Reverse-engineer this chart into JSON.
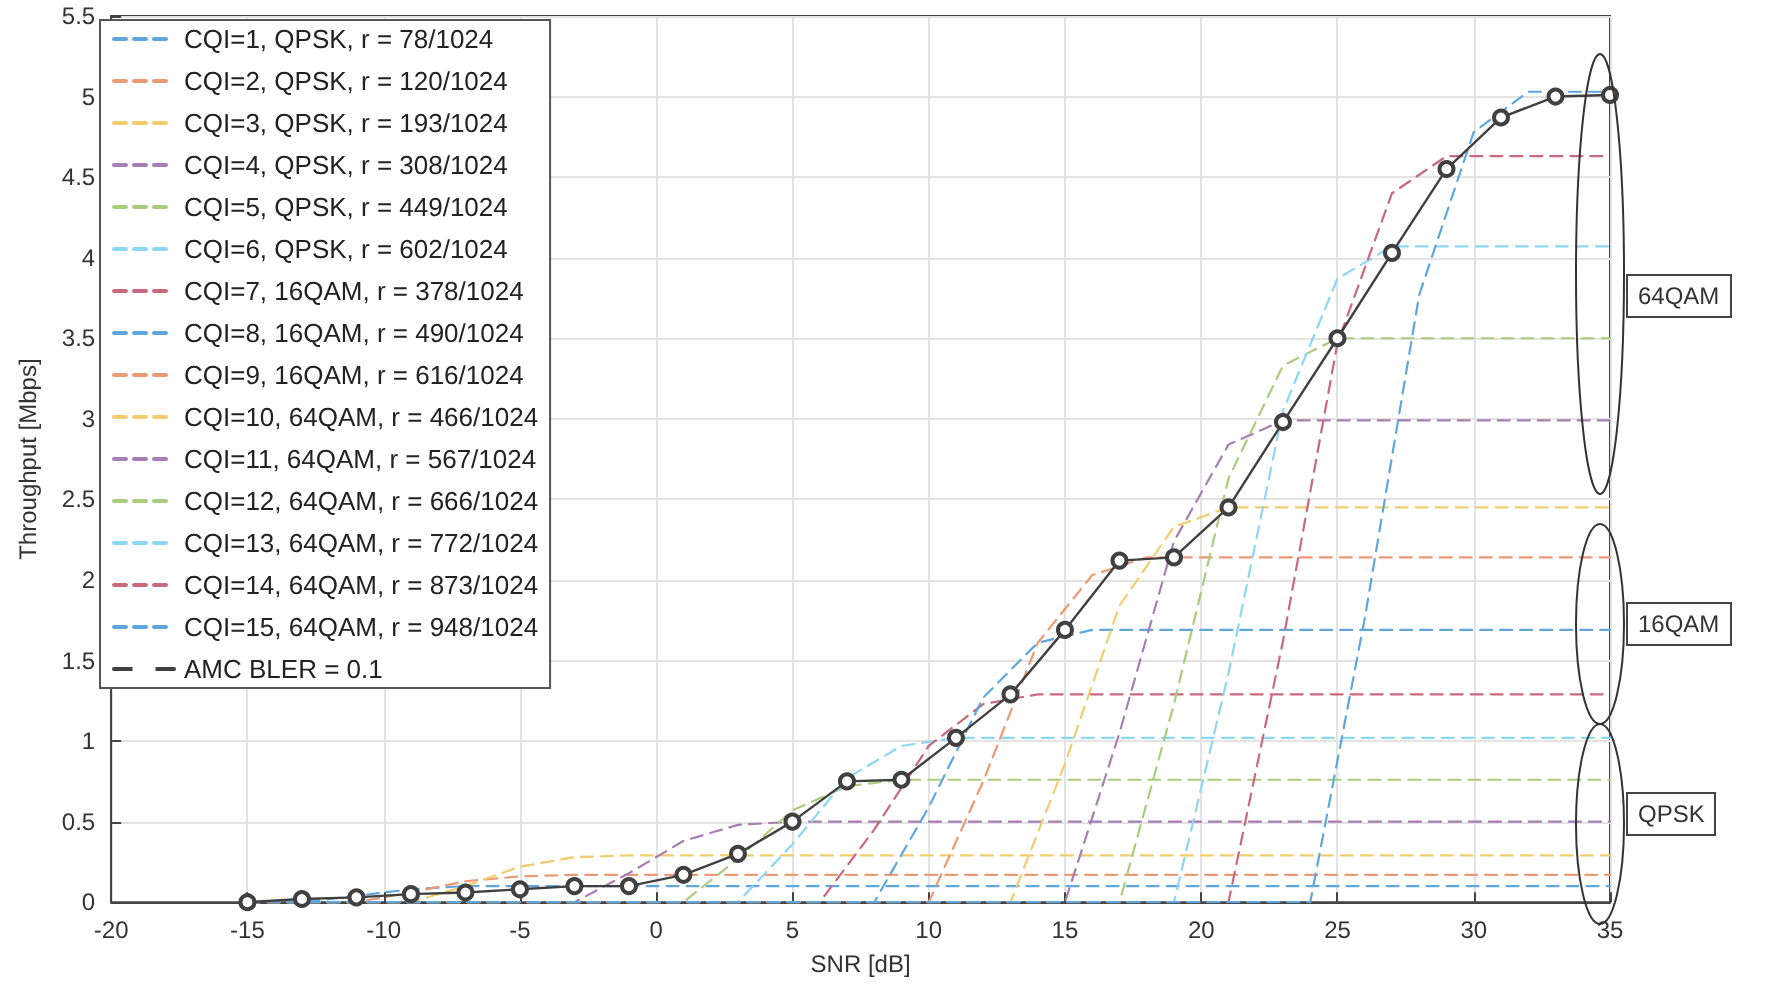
{
  "chart_data": {
    "type": "line",
    "xlabel": "SNR [dB]",
    "ylabel": "Throughput [Mbps]",
    "xlim": [
      -20,
      35
    ],
    "xticks": [
      -20,
      -15,
      -10,
      -5,
      0,
      5,
      10,
      15,
      20,
      25,
      30,
      35
    ],
    "ylim": [
      0,
      5.5
    ],
    "yticks": [
      0,
      0.5,
      1,
      1.5,
      2,
      2.5,
      3,
      3.5,
      4,
      4.5,
      5,
      5.5
    ],
    "grid": true,
    "legend": "top left",
    "line_style": "dashed",
    "marker": "none",
    "annotations": [
      "64QAM",
      "16QAM",
      "QPSK"
    ],
    "series": [
      {
        "name": "CQI=1, QPSK, r = 78/1024",
        "color": "#5fa6dc",
        "x": [
          -15,
          -13,
          -11,
          -9,
          -7,
          -5,
          35
        ],
        "values": [
          0,
          0,
          0.04,
          0.08,
          0.1,
          0.1,
          0.1
        ]
      },
      {
        "name": "CQI=2, QPSK, r = 120/1024",
        "color": "#eb9a74",
        "x": [
          -15,
          -11,
          -9,
          -7,
          -5,
          -3,
          35
        ],
        "values": [
          0,
          0,
          0.06,
          0.13,
          0.16,
          0.17,
          0.17
        ]
      },
      {
        "name": "CQI=3, QPSK, r = 193/1024",
        "color": "#f2cc6e",
        "x": [
          -15,
          -9,
          -7,
          -5,
          -3,
          -1,
          35
        ],
        "values": [
          0,
          0,
          0.1,
          0.22,
          0.28,
          0.29,
          0.29
        ]
      },
      {
        "name": "CQI=4, QPSK, r = 308/1024",
        "color": "#a77db3",
        "x": [
          -15,
          -3,
          -1,
          1,
          3,
          5,
          35
        ],
        "values": [
          0,
          0,
          0.18,
          0.38,
          0.48,
          0.5,
          0.5
        ]
      },
      {
        "name": "CQI=5, QPSK, r = 449/1024",
        "color": "#a8cd7c",
        "x": [
          -15,
          1,
          3,
          5,
          7,
          9,
          35
        ],
        "values": [
          0,
          0,
          0.27,
          0.57,
          0.72,
          0.76,
          0.76
        ]
      },
      {
        "name": "CQI=6, QPSK, r = 602/1024",
        "color": "#8dd6f4",
        "x": [
          -15,
          3,
          5,
          7,
          9,
          11,
          35
        ],
        "values": [
          0,
          0,
          0.36,
          0.77,
          0.97,
          1.02,
          1.02
        ]
      },
      {
        "name": "CQI=7, 16QAM, r = 378/1024",
        "color": "#c76a7d",
        "x": [
          -15,
          6,
          8,
          10,
          12,
          14,
          35
        ],
        "values": [
          0,
          0,
          0.45,
          0.97,
          1.23,
          1.29,
          1.29
        ]
      },
      {
        "name": "CQI=8, 16QAM, r = 490/1024",
        "color": "#5fa6dc",
        "x": [
          -15,
          8,
          10,
          12,
          14,
          16,
          35
        ],
        "values": [
          0,
          0,
          0.59,
          1.27,
          1.61,
          1.69,
          1.69
        ]
      },
      {
        "name": "CQI=9, 16QAM, r = 616/1024",
        "color": "#eb9a74",
        "x": [
          -15,
          10,
          12,
          14,
          16,
          18,
          35
        ],
        "values": [
          0,
          0,
          0.75,
          1.61,
          2.03,
          2.14,
          2.14
        ]
      },
      {
        "name": "CQI=10, 64QAM, r = 466/1024",
        "color": "#f2cc6e",
        "x": [
          -15,
          13,
          15,
          17,
          19,
          21,
          35
        ],
        "values": [
          0,
          0,
          0.86,
          1.84,
          2.33,
          2.45,
          2.45
        ]
      },
      {
        "name": "CQI=11, 64QAM, r = 567/1024",
        "color": "#a77db3",
        "x": [
          -15,
          15,
          17,
          19,
          21,
          23,
          35
        ],
        "values": [
          0,
          0,
          1.05,
          2.24,
          2.84,
          2.99,
          2.99
        ]
      },
      {
        "name": "CQI=12, 64QAM, r = 666/1024",
        "color": "#a8cd7c",
        "x": [
          -15,
          17,
          19,
          21,
          23,
          25,
          35
        ],
        "values": [
          0,
          0,
          1.23,
          2.63,
          3.33,
          3.5,
          3.5
        ]
      },
      {
        "name": "CQI=13, 64QAM, r = 772/1024",
        "color": "#8dd6f4",
        "x": [
          -15,
          19,
          21,
          23,
          25,
          27,
          35
        ],
        "values": [
          0,
          0,
          1.42,
          3.05,
          3.87,
          4.07,
          4.07
        ]
      },
      {
        "name": "CQI=14, 64QAM, r = 873/1024",
        "color": "#c76a7d",
        "x": [
          -15,
          21,
          23,
          25,
          27,
          29,
          35
        ],
        "values": [
          0,
          0,
          1.62,
          3.47,
          4.4,
          4.63,
          4.63
        ]
      },
      {
        "name": "CQI=15, 64QAM, r = 948/1024",
        "color": "#5fa6dc",
        "x": [
          -15,
          24,
          26,
          28,
          30,
          32,
          35
        ],
        "values": [
          0,
          0,
          1.76,
          3.77,
          4.78,
          5.03,
          5.03
        ]
      },
      {
        "name": "AMC BLER = 0.1",
        "color": "#404040",
        "line_style": "solid",
        "marker": "circle",
        "x": [
          -15,
          -13,
          -11,
          -9,
          -7,
          -5,
          -3,
          -1,
          1,
          3,
          5,
          7,
          9,
          11,
          13,
          15,
          17,
          19,
          21,
          23,
          25,
          27,
          29,
          31,
          33,
          35
        ],
        "values": [
          0,
          0.02,
          0.03,
          0.05,
          0.06,
          0.08,
          0.1,
          0.1,
          0.17,
          0.3,
          0.5,
          0.75,
          0.76,
          1.02,
          1.29,
          1.69,
          2.12,
          2.14,
          2.45,
          2.98,
          3.5,
          4.03,
          4.55,
          4.87,
          5.0,
          5.01
        ]
      }
    ]
  }
}
